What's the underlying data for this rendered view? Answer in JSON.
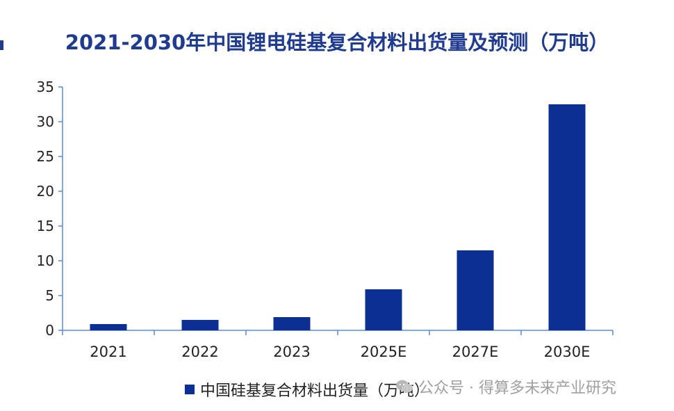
{
  "chart_data": {
    "type": "bar",
    "title": "2021-2030年中国锂电硅基复合材料出货量及预测（万吨）",
    "categories": [
      "2021",
      "2022",
      "2023",
      "2025E",
      "2027E",
      "2030E"
    ],
    "series": [
      {
        "name": "中国硅基复合材料出货量（万吨）",
        "values": [
          0.9,
          1.5,
          1.9,
          5.9,
          11.5,
          32.5
        ]
      }
    ],
    "ylim": [
      0,
      35
    ],
    "yticks": [
      "0",
      "5",
      "10",
      "15",
      "20",
      "25",
      "30",
      "35"
    ],
    "grid": false,
    "legend_position": "bottom",
    "bar_color": "#0b2f93"
  },
  "watermark": {
    "text": "公众号 · 得算多未来产业研究",
    "icon": "wechat-icon"
  },
  "colors": {
    "title": "#1f3b8f",
    "axis": "#5b8ccc"
  }
}
